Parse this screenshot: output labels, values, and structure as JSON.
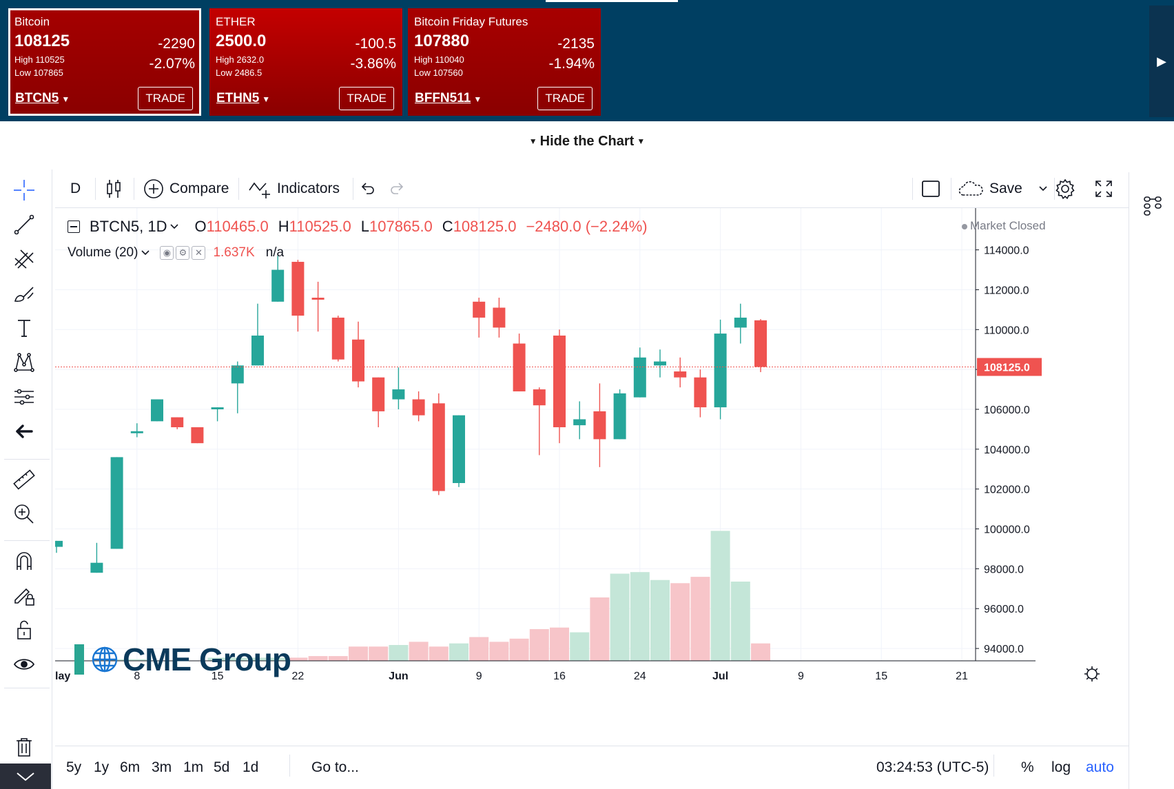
{
  "tickers": [
    {
      "name": "Bitcoin",
      "price": "108125",
      "change": "-2290",
      "pct": "-2.07%",
      "high": "High 110525",
      "low": "Low 107865",
      "symbol": "BTCN5",
      "trade": "TRADE",
      "color": "#a50000",
      "active": true
    },
    {
      "name": "ETHER",
      "price": "2500.0",
      "change": "-100.5",
      "pct": "-3.86%",
      "high": "High 2632.0",
      "low": "Low 2486.5",
      "symbol": "ETHN5",
      "trade": "TRADE",
      "color": "#c40000",
      "active": false
    },
    {
      "name": "Bitcoin Friday Futures",
      "price": "107880",
      "change": "-2135",
      "pct": "-1.94%",
      "high": "High 110040",
      "low": "Low 107560",
      "symbol": "BFFN511",
      "trade": "TRADE",
      "color": "#a80000",
      "active": false
    }
  ],
  "hide_chart_label": "Hide the Chart",
  "toolbar": {
    "interval": "D",
    "compare": "Compare",
    "indicators": "Indicators",
    "save": "Save"
  },
  "legend": {
    "symbol": "BTCN5, 1D",
    "o_label": "O",
    "o": "110465.0",
    "h_label": "H",
    "h": "110525.0",
    "l_label": "L",
    "l": "107865.0",
    "c_label": "C",
    "c": "108125.0",
    "change": "−2480.0 (−2.24%)"
  },
  "volume_legend": {
    "label": "Volume (20)",
    "value": "1.637K",
    "ma": "n/a"
  },
  "market_status": "Market Closed",
  "logo_text": "CME Group",
  "last_price_label": "108125.0",
  "bottom": {
    "ranges": [
      "5y",
      "1y",
      "6m",
      "3m",
      "1m",
      "5d",
      "1d"
    ],
    "goto": "Go to...",
    "time": "03:24:53 (UTC-5)",
    "pct": "%",
    "log": "log",
    "auto": "auto"
  },
  "colors": {
    "up": "#26a69a",
    "down": "#ef5350",
    "vol_up": "#c4e6d8",
    "vol_down": "#f7c5c9",
    "link": "#2962ff"
  },
  "chart_data": {
    "type": "candlestick",
    "symbol": "BTCN5",
    "interval": "1D",
    "ylim": [
      93000,
      115300
    ],
    "y_ticks": [
      94000,
      96000,
      98000,
      100000,
      102000,
      104000,
      106000,
      108000,
      110000,
      112000,
      114000
    ],
    "y_tick_labels": [
      "94000.0",
      "96000.0",
      "98000.0",
      "100000.0",
      "102000.0",
      "104000.0",
      "106000.0",
      "108000.0",
      "110000.0",
      "112000.0",
      "114000.0"
    ],
    "x_tick_labels": [
      {
        "label": "lay",
        "index": 0
      },
      {
        "label": "8",
        "index": 4
      },
      {
        "label": "15",
        "index": 8
      },
      {
        "label": "22",
        "index": 12
      },
      {
        "label": "Jun",
        "index": 17
      },
      {
        "label": "9",
        "index": 21
      },
      {
        "label": "16",
        "index": 25
      },
      {
        "label": "24",
        "index": 29
      },
      {
        "label": "Jul",
        "index": 33
      },
      {
        "label": "9",
        "index": 37
      },
      {
        "label": "15",
        "index": 41
      },
      {
        "label": "21",
        "index": 45
      }
    ],
    "last_price": 108125,
    "candles": [
      {
        "o": 99100,
        "h": 99400,
        "l": 98800,
        "c": 99400
      },
      {
        "o": 97800,
        "h": 99300,
        "l": 97800,
        "c": 98300
      },
      {
        "o": 99000,
        "h": 103600,
        "l": 99000,
        "c": 103600
      },
      {
        "o": 104800,
        "h": 105300,
        "l": 104600,
        "c": 104900
      },
      {
        "o": 105400,
        "h": 106500,
        "l": 105400,
        "c": 106500
      },
      {
        "o": 105600,
        "h": 105600,
        "l": 105000,
        "c": 105100
      },
      {
        "o": 105100,
        "h": 105100,
        "l": 104300,
        "c": 104300
      },
      {
        "o": 106000,
        "h": 106100,
        "l": 105400,
        "c": 106100
      },
      {
        "o": 107300,
        "h": 108400,
        "l": 105800,
        "c": 108200
      },
      {
        "o": 108200,
        "h": 111300,
        "l": 108200,
        "c": 109700
      },
      {
        "o": 111400,
        "h": 113700,
        "l": 111400,
        "c": 113000
      },
      {
        "o": 113400,
        "h": 113500,
        "l": 109900,
        "c": 110700
      },
      {
        "o": 111600,
        "h": 112400,
        "l": 109900,
        "c": 111500
      },
      {
        "o": 110600,
        "h": 110700,
        "l": 108400,
        "c": 108500
      },
      {
        "o": 109500,
        "h": 110400,
        "l": 107100,
        "c": 107400
      },
      {
        "o": 107600,
        "h": 107600,
        "l": 105100,
        "c": 105900
      },
      {
        "o": 106500,
        "h": 108100,
        "l": 106000,
        "c": 107000
      },
      {
        "o": 106500,
        "h": 106900,
        "l": 105400,
        "c": 105700
      },
      {
        "o": 106300,
        "h": 106800,
        "l": 101700,
        "c": 101900
      },
      {
        "o": 102300,
        "h": 105700,
        "l": 102100,
        "c": 105700
      },
      {
        "o": 111400,
        "h": 111600,
        "l": 109600,
        "c": 110600
      },
      {
        "o": 111100,
        "h": 111600,
        "l": 109600,
        "c": 110100
      },
      {
        "o": 109300,
        "h": 109800,
        "l": 106900,
        "c": 106900
      },
      {
        "o": 107000,
        "h": 107100,
        "l": 103700,
        "c": 106200
      },
      {
        "o": 109700,
        "h": 110000,
        "l": 104300,
        "c": 105100
      },
      {
        "o": 105200,
        "h": 106400,
        "l": 104500,
        "c": 105500
      },
      {
        "o": 105900,
        "h": 107300,
        "l": 103100,
        "c": 104500
      },
      {
        "o": 104500,
        "h": 107000,
        "l": 104500,
        "c": 106800
      },
      {
        "o": 106600,
        "h": 109100,
        "l": 106600,
        "c": 108600
      },
      {
        "o": 108200,
        "h": 109000,
        "l": 107600,
        "c": 108400
      },
      {
        "o": 107900,
        "h": 108600,
        "l": 107100,
        "c": 107600
      },
      {
        "o": 107600,
        "h": 108000,
        "l": 105600,
        "c": 106100
      },
      {
        "o": 106100,
        "h": 110500,
        "l": 105500,
        "c": 109800
      },
      {
        "o": 110100,
        "h": 111300,
        "l": 109300,
        "c": 110600
      },
      {
        "o": 110465,
        "h": 110525,
        "l": 107865,
        "c": 108125
      }
    ],
    "candle_start_index": 0,
    "candle_index_map": [
      0,
      2,
      3,
      4,
      5,
      6,
      7,
      8,
      9,
      10,
      11,
      12,
      13,
      14,
      15,
      16,
      17,
      18,
      19,
      20,
      21,
      22,
      23,
      24,
      25,
      26,
      27,
      28,
      29,
      30,
      31,
      32,
      33,
      34,
      35
    ],
    "volume": [
      {
        "i": 3,
        "v": 0.01,
        "up": true
      },
      {
        "i": 4,
        "v": 0.01,
        "up": true
      },
      {
        "i": 8,
        "v": 0.02,
        "up": true
      },
      {
        "i": 9,
        "v": 0.02,
        "up": true
      },
      {
        "i": 10,
        "v": 0.02,
        "up": true
      },
      {
        "i": 11,
        "v": 0.02,
        "up": true
      },
      {
        "i": 12,
        "v": 0.02,
        "up": false
      },
      {
        "i": 13,
        "v": 0.03,
        "up": false
      },
      {
        "i": 14,
        "v": 0.03,
        "up": false
      },
      {
        "i": 15,
        "v": 0.09,
        "up": false
      },
      {
        "i": 16,
        "v": 0.09,
        "up": false
      },
      {
        "i": 17,
        "v": 0.1,
        "up": true
      },
      {
        "i": 18,
        "v": 0.12,
        "up": false
      },
      {
        "i": 19,
        "v": 0.09,
        "up": false
      },
      {
        "i": 20,
        "v": 0.11,
        "up": true
      },
      {
        "i": 21,
        "v": 0.15,
        "up": false
      },
      {
        "i": 22,
        "v": 0.12,
        "up": false
      },
      {
        "i": 23,
        "v": 0.14,
        "up": false
      },
      {
        "i": 24,
        "v": 0.2,
        "up": false
      },
      {
        "i": 25,
        "v": 0.21,
        "up": false
      },
      {
        "i": 26,
        "v": 0.18,
        "up": true
      },
      {
        "i": 27,
        "v": 0.4,
        "up": false
      },
      {
        "i": 28,
        "v": 0.55,
        "up": true
      },
      {
        "i": 29,
        "v": 0.56,
        "up": true
      },
      {
        "i": 30,
        "v": 0.51,
        "up": true
      },
      {
        "i": 31,
        "v": 0.49,
        "up": false
      },
      {
        "i": 32,
        "v": 0.53,
        "up": false
      },
      {
        "i": 33,
        "v": 0.82,
        "up": true
      },
      {
        "i": 34,
        "v": 0.5,
        "up": true
      },
      {
        "i": 35,
        "v": 0.11,
        "up": false
      }
    ]
  }
}
